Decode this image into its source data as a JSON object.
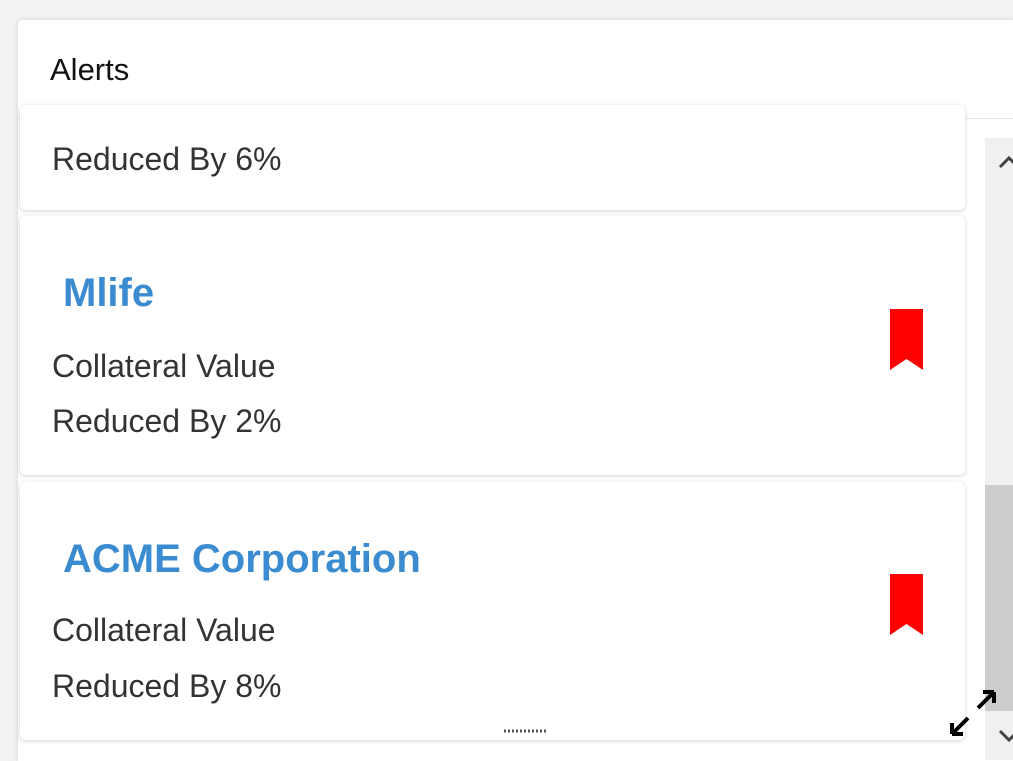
{
  "header": {
    "title": "Alerts"
  },
  "alerts": [
    {
      "lines": [
        "Reduced By 6%"
      ]
    },
    {
      "name": "Mlife",
      "lines": [
        "Collateral Value",
        "Reduced By 2%"
      ]
    },
    {
      "name": "ACME Corporation",
      "lines": [
        "Collateral Value",
        "Reduced By 8%"
      ]
    }
  ]
}
